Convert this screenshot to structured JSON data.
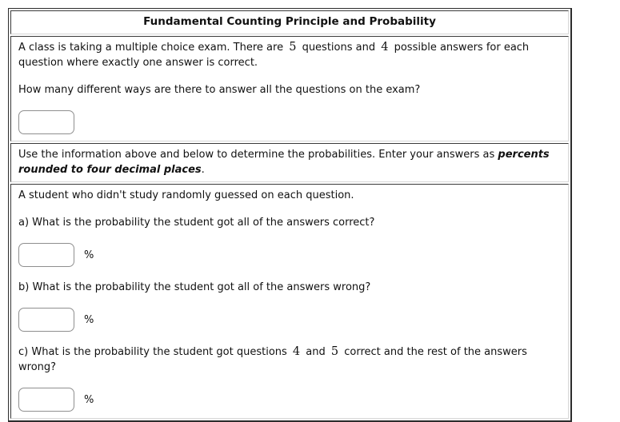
{
  "problem": {
    "title": "Fundamental Counting Principle and Probability",
    "intro": {
      "seg1": "A class is taking a multiple choice exam. There are ",
      "num_questions": "5",
      "seg2": " questions and ",
      "num_answers": "4",
      "seg3": " possible answers for each question where exactly one answer is correct."
    },
    "question_total": "How many different ways are there to answer all the questions on the exam?",
    "instructions": {
      "plain": "Use the information above and below to determine the probabilities. Enter your answers as ",
      "emphasis": "percents rounded to four decimal places",
      "end": "."
    },
    "scenario": "A student who didn't study randomly guessed on each question.",
    "part_a": {
      "label": "a) What is the probability the student got all of the answers correct?",
      "unit": "%"
    },
    "part_b": {
      "label": "b) What is the probability the student got all of the answers wrong?",
      "unit": "%"
    },
    "part_c": {
      "seg1": "c) What is the probability the student got questions ",
      "num1": "4",
      "seg2": " and ",
      "num2": "5",
      "seg3": " correct and the rest of the answers wrong?",
      "unit": "%"
    },
    "inputs": {
      "total_ways_value": "",
      "answer_a_value": "",
      "answer_b_value": "",
      "answer_c_value": ""
    }
  }
}
